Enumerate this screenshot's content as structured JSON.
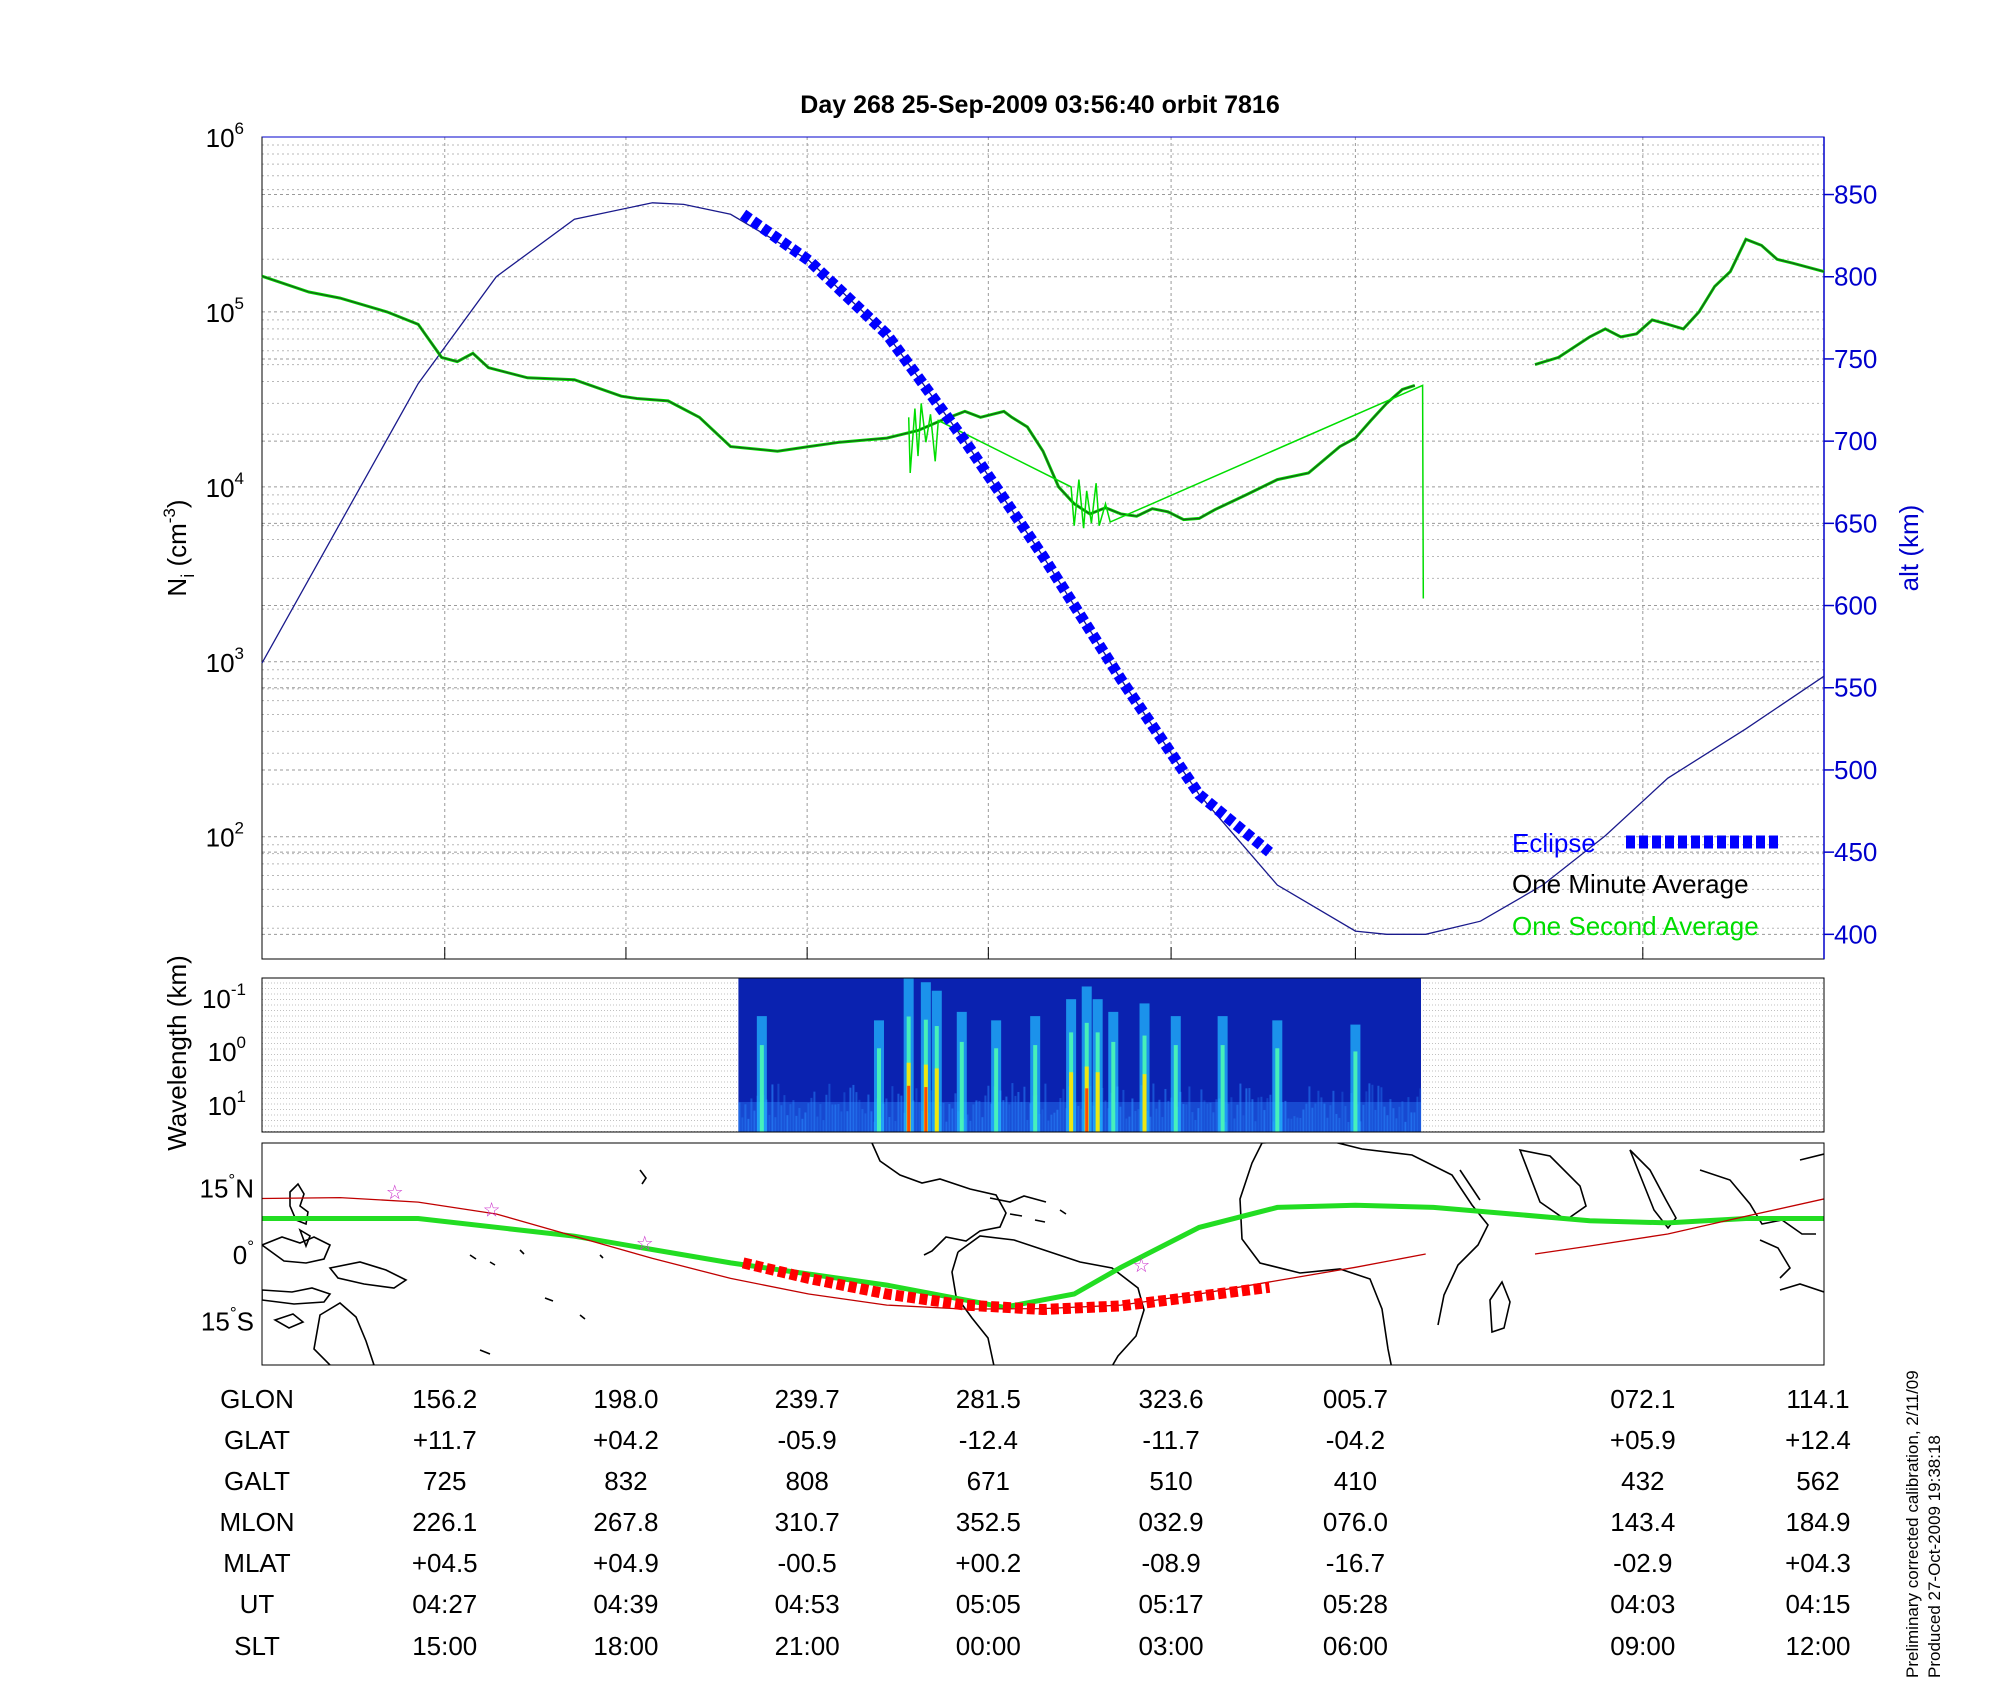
{
  "title": "Day 268  25-Sep-2009 03:56:40   orbit 7816",
  "footer": {
    "line1": "Preliminary corrected calibration, 2/11/09",
    "line2": "Produced 27-Oct-2009 19:38:18"
  },
  "colors": {
    "eclipse": "#0000ff",
    "minute": "#1a5e1a",
    "second": "#00dd00",
    "orbit_alt": "#1a1a8c",
    "track": "#c00000",
    "eclipse_track": "#ff0000",
    "green_track": "#22dd22",
    "stars": "#cc33cc"
  },
  "chart_data": [
    {
      "type": "line",
      "panel": "density",
      "ylabel": "N_i (cm^-3)",
      "ylabel_main": "N",
      "ylabel_sub": "i",
      "ylabel_unit": "(cm",
      "ylabel_exp": "-3",
      "ylabel_close": ")",
      "yscale": "log",
      "ylim": [
        20,
        1000000
      ],
      "yticks": [
        {
          "base": "10",
          "exp": "6",
          "value": 1000000
        },
        {
          "base": "10",
          "exp": "5",
          "value": 100000
        },
        {
          "base": "10",
          "exp": "4",
          "value": 10000
        },
        {
          "base": "10",
          "exp": "3",
          "value": 1000
        },
        {
          "base": "10",
          "exp": "2",
          "value": 100
        }
      ],
      "y2label": "alt (km)",
      "y2lim": [
        385,
        885
      ],
      "y2ticks": [
        850,
        800,
        750,
        700,
        650,
        600,
        550,
        500,
        450,
        400
      ],
      "xlim": [
        0,
        100
      ],
      "legend_position": "bottom-right",
      "legend": [
        {
          "label": "Eclipse",
          "color": "#0000ff"
        },
        {
          "label": "One Minute Average",
          "color": "#000000"
        },
        {
          "label": "One Second Average",
          "color": "#00dd00"
        }
      ],
      "series": [
        {
          "name": "One Minute Average",
          "x": [
            0,
            3,
            5,
            8,
            10,
            11.5,
            12.5,
            13.5,
            14.5,
            17,
            20,
            23,
            24,
            26,
            28,
            30,
            33,
            35,
            37,
            40,
            42,
            43.5,
            45,
            46,
            47.5,
            48,
            49,
            50,
            51,
            52,
            53,
            54,
            55,
            56,
            57,
            58,
            59,
            60,
            61,
            63,
            65,
            67,
            69,
            70,
            71,
            72,
            73,
            73.8
          ],
          "y": [
            160000,
            130000,
            120000,
            100000,
            85000,
            55000,
            52000,
            58000,
            48000,
            42000,
            41000,
            33000,
            32000,
            31000,
            25000,
            17000,
            16000,
            17000,
            18000,
            19000,
            21000,
            24000,
            27000,
            25000,
            27000,
            25000,
            22000,
            16000,
            10000,
            8000,
            7000,
            7600,
            7000,
            6800,
            7500,
            7200,
            6500,
            6600,
            7400,
            9000,
            11000,
            12000,
            17000,
            19000,
            24000,
            30000,
            36000,
            38000
          ]
        },
        {
          "name": "One Minute Average (later)",
          "x": [
            81.5,
            83,
            85,
            86,
            87,
            88,
            89,
            90,
            91,
            92,
            93,
            94,
            95,
            96,
            97,
            98,
            100
          ],
          "y": [
            50000,
            55000,
            72000,
            80000,
            72000,
            75000,
            90000,
            85000,
            80000,
            100000,
            140000,
            170000,
            260000,
            240000,
            200000,
            190000,
            170000
          ]
        },
        {
          "name": "One Second Average spikes",
          "x": [
            41.4,
            41.5,
            41.8,
            42.0,
            42.2,
            42.5,
            42.8,
            43.1,
            43.3,
            51.8,
            52.0,
            52.3,
            52.6,
            52.8,
            53.1,
            53.4,
            53.6,
            54.0,
            54.3,
            74.3,
            74.35
          ],
          "y": [
            25000,
            12000,
            28000,
            15000,
            30000,
            18000,
            26000,
            14000,
            24000,
            10000,
            6000,
            11000,
            5800,
            9500,
            6200,
            10500,
            6000,
            8000,
            6300,
            38000,
            2300
          ]
        },
        {
          "name": "Altitude",
          "axis": "y2",
          "x": [
            0,
            5,
            10,
            15,
            20,
            25,
            27,
            30,
            35,
            40,
            45,
            50,
            55,
            60,
            65,
            70,
            72,
            74.5,
            78,
            82,
            86,
            90,
            95,
            100
          ],
          "y": [
            565,
            650,
            735,
            800,
            835,
            845,
            844,
            838,
            810,
            765,
            700,
            630,
            555,
            485,
            430,
            402,
            400,
            400,
            408,
            430,
            460,
            495,
            525,
            557
          ]
        },
        {
          "name": "Eclipse",
          "axis": "y2",
          "x": [
            30.8,
            35,
            40,
            45,
            50,
            55,
            60,
            64.5
          ],
          "y": [
            838,
            810,
            765,
            700,
            630,
            555,
            485,
            450
          ]
        }
      ]
    },
    {
      "type": "heatmap",
      "panel": "spectrogram",
      "ylabel": "Wavelength (km)",
      "yticks": [
        {
          "base": "10",
          "exp": "-1"
        },
        {
          "base": "10",
          "exp": "0"
        },
        {
          "base": "10",
          "exp": "1"
        }
      ],
      "xlim": [
        0,
        100
      ],
      "data_x_range": [
        30.5,
        74.2
      ],
      "activity_bands": [
        {
          "x": 32.0,
          "intensity": 0.55
        },
        {
          "x": 39.5,
          "intensity": 0.5
        },
        {
          "x": 41.4,
          "intensity": 1.0
        },
        {
          "x": 42.5,
          "intensity": 0.95
        },
        {
          "x": 43.2,
          "intensity": 0.85
        },
        {
          "x": 44.8,
          "intensity": 0.6
        },
        {
          "x": 47.0,
          "intensity": 0.5
        },
        {
          "x": 49.5,
          "intensity": 0.55
        },
        {
          "x": 51.8,
          "intensity": 0.75
        },
        {
          "x": 52.8,
          "intensity": 0.9
        },
        {
          "x": 53.5,
          "intensity": 0.75
        },
        {
          "x": 54.5,
          "intensity": 0.6
        },
        {
          "x": 56.5,
          "intensity": 0.7
        },
        {
          "x": 58.5,
          "intensity": 0.55
        },
        {
          "x": 61.5,
          "intensity": 0.55
        },
        {
          "x": 65.0,
          "intensity": 0.5
        },
        {
          "x": 70.0,
          "intensity": 0.45
        }
      ]
    },
    {
      "type": "line",
      "panel": "map",
      "yticks": [
        {
          "label": "15",
          "unit": "N",
          "value": 15
        },
        {
          "label": "0",
          "unit": "",
          "value": 0
        },
        {
          "label": "15",
          "unit": "S",
          "value": -15
        }
      ],
      "ylim": [
        -25,
        25
      ],
      "xlim": [
        0,
        100
      ],
      "series": [
        {
          "name": "Ground track",
          "x": [
            0,
            5,
            10,
            15,
            20,
            25,
            30,
            35,
            40,
            45,
            50,
            55,
            60,
            65,
            70,
            74.5
          ],
          "y": [
            12.5,
            12.7,
            11.7,
            9,
            4,
            -1,
            -5.5,
            -9,
            -11.5,
            -12.4,
            -12.3,
            -11.5,
            -9,
            -6,
            -3,
            0
          ]
        },
        {
          "name": "Ground track (later)",
          "x": [
            81.5,
            85,
            90,
            95,
            100
          ],
          "y": [
            0,
            1.8,
            4.5,
            8.5,
            12.4
          ]
        },
        {
          "name": "Magnetic equator",
          "x": [
            0,
            10,
            20,
            30,
            40,
            47.5,
            52,
            55,
            60,
            65,
            70,
            75,
            80,
            85,
            90,
            95,
            100
          ],
          "y": [
            8,
            8,
            4,
            -2,
            -7,
            -12,
            -9,
            -3,
            6,
            10.5,
            11,
            10.5,
            9,
            7.5,
            7,
            8,
            8
          ]
        },
        {
          "name": "Eclipse",
          "x": [
            30.8,
            35,
            40,
            45,
            47.5,
            50,
            55,
            60,
            64.5
          ],
          "y": [
            -2,
            -5.5,
            -9,
            -11.5,
            -12,
            -12.5,
            -11.7,
            -9.5,
            -7.5
          ]
        }
      ],
      "stars": [
        {
          "x": 8.5,
          "y": 14
        },
        {
          "x": 14.7,
          "y": 10
        },
        {
          "x": 24.5,
          "y": 2.5
        },
        {
          "x": 56.3,
          "y": -2.5
        }
      ]
    }
  ],
  "table": {
    "row_labels": [
      "GLON",
      "GLAT",
      "GALT",
      "MLON",
      "MLAT",
      "UT",
      "SLT"
    ],
    "columns": [
      {
        "x": 11.7,
        "values": [
          "156.2",
          "+11.7",
          "725",
          "226.1",
          "+04.5",
          "04:27",
          "15:00"
        ]
      },
      {
        "x": 23.3,
        "values": [
          "198.0",
          "+04.2",
          "832",
          "267.8",
          "+04.9",
          "04:39",
          "18:00"
        ]
      },
      {
        "x": 34.9,
        "values": [
          "239.7",
          "-05.9",
          "808",
          "310.7",
          "-00.5",
          "04:53",
          "21:00"
        ]
      },
      {
        "x": 46.5,
        "values": [
          "281.5",
          "-12.4",
          "671",
          "352.5",
          "+00.2",
          "05:05",
          "00:00"
        ]
      },
      {
        "x": 58.2,
        "values": [
          "323.6",
          "-11.7",
          "510",
          "032.9",
          "-08.9",
          "05:17",
          "03:00"
        ]
      },
      {
        "x": 70.0,
        "values": [
          "005.7",
          "-04.2",
          "410",
          "076.0",
          "-16.7",
          "05:28",
          "06:00"
        ]
      },
      {
        "x": 88.4,
        "values": [
          "072.1",
          "+05.9",
          "432",
          "143.4",
          "-02.9",
          "04:03",
          "09:00"
        ]
      },
      {
        "x": 100,
        "values": [
          "114.1",
          "+12.4",
          "562",
          "184.9",
          "+04.3",
          "04:15",
          "12:00"
        ]
      }
    ]
  }
}
